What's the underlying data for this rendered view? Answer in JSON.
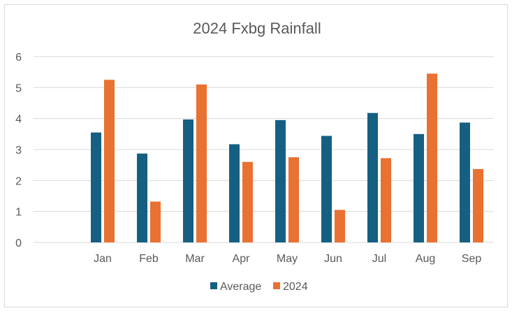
{
  "chart_data": {
    "type": "bar",
    "title": "2024 Fxbg Rainfall",
    "xlabel": "",
    "ylabel": "",
    "ylim": [
      0,
      6
    ],
    "yticks": [
      "0",
      "1",
      "2",
      "3",
      "4",
      "5",
      "6"
    ],
    "grid": true,
    "legend_position": "bottom",
    "categories": [
      "Jan",
      "Feb",
      "Mar",
      "Apr",
      "May",
      "Jun",
      "Jul",
      "Aug",
      "Sep"
    ],
    "series": [
      {
        "name": "Average",
        "color": "#156082",
        "values": [
          3.55,
          2.87,
          3.97,
          3.17,
          3.95,
          3.44,
          4.18,
          3.5,
          3.87
        ]
      },
      {
        "name": "2024",
        "color": "#e97132",
        "values": [
          5.25,
          1.32,
          5.1,
          2.6,
          2.75,
          1.05,
          2.72,
          5.45,
          2.37
        ]
      }
    ]
  }
}
